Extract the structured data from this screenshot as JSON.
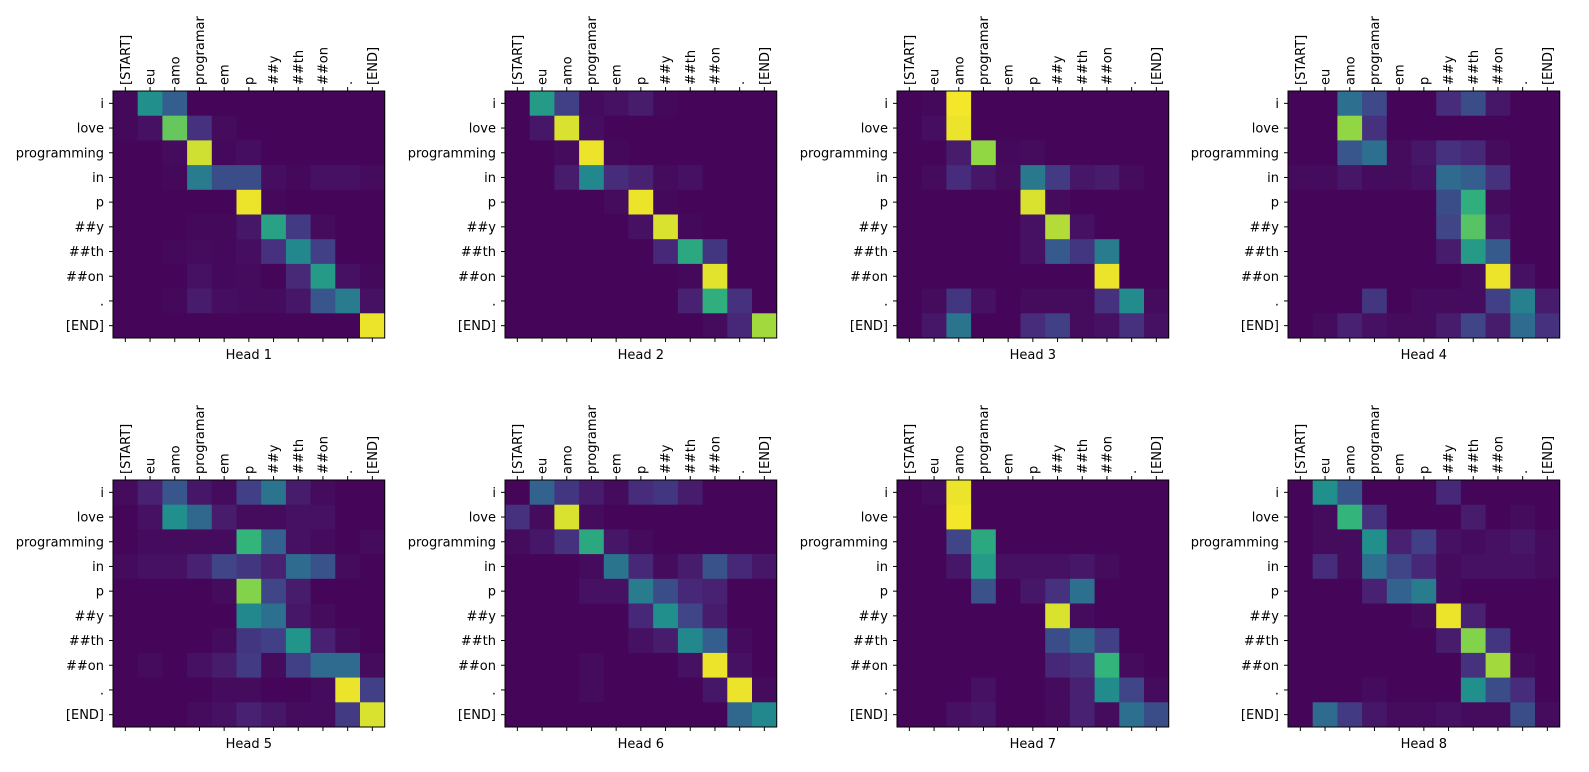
{
  "chart_data": {
    "type": "heatmap",
    "title": "",
    "xlabel": "",
    "ylabel": "",
    "x_tokens": [
      "[START]",
      "eu",
      "amo",
      "programar",
      "em",
      "p",
      "##y",
      "##th",
      "##on",
      ".",
      "[END]"
    ],
    "y_tokens": [
      "i",
      "love",
      "programming",
      "in",
      "p",
      "##y",
      "##th",
      "##on",
      ".",
      "[END]"
    ],
    "value_range": [
      0,
      1
    ],
    "colormap": "viridis",
    "panels": [
      {
        "label": "Head 1",
        "values": [
          [
            0.03,
            0.62,
            0.38,
            0.02,
            0.02,
            0.02,
            0.02,
            0.02,
            0.02,
            0.02,
            0.02
          ],
          [
            0.03,
            0.06,
            0.82,
            0.18,
            0.04,
            0.02,
            0.02,
            0.02,
            0.02,
            0.02,
            0.02
          ],
          [
            0.02,
            0.02,
            0.04,
            0.95,
            0.03,
            0.05,
            0.02,
            0.02,
            0.02,
            0.02,
            0.02
          ],
          [
            0.02,
            0.02,
            0.03,
            0.52,
            0.3,
            0.3,
            0.05,
            0.03,
            0.06,
            0.06,
            0.04
          ],
          [
            0.02,
            0.02,
            0.02,
            0.02,
            0.02,
            0.98,
            0.03,
            0.02,
            0.02,
            0.02,
            0.02
          ],
          [
            0.02,
            0.02,
            0.02,
            0.03,
            0.03,
            0.08,
            0.68,
            0.22,
            0.04,
            0.02,
            0.02
          ],
          [
            0.02,
            0.02,
            0.03,
            0.04,
            0.03,
            0.05,
            0.18,
            0.58,
            0.24,
            0.02,
            0.02
          ],
          [
            0.02,
            0.02,
            0.02,
            0.06,
            0.03,
            0.04,
            0.02,
            0.15,
            0.66,
            0.06,
            0.03
          ],
          [
            0.02,
            0.02,
            0.03,
            0.1,
            0.05,
            0.04,
            0.04,
            0.08,
            0.34,
            0.52,
            0.06
          ],
          [
            0.02,
            0.02,
            0.02,
            0.02,
            0.02,
            0.02,
            0.02,
            0.02,
            0.02,
            0.02,
            0.98
          ]
        ]
      },
      {
        "label": "Head 2",
        "values": [
          [
            0.02,
            0.66,
            0.24,
            0.04,
            0.06,
            0.1,
            0.03,
            0.02,
            0.02,
            0.02,
            0.02
          ],
          [
            0.02,
            0.08,
            0.96,
            0.05,
            0.02,
            0.02,
            0.02,
            0.02,
            0.02,
            0.02,
            0.02
          ],
          [
            0.02,
            0.02,
            0.04,
            0.98,
            0.03,
            0.02,
            0.02,
            0.02,
            0.02,
            0.02,
            0.02
          ],
          [
            0.02,
            0.02,
            0.1,
            0.58,
            0.16,
            0.12,
            0.04,
            0.06,
            0.02,
            0.02,
            0.02
          ],
          [
            0.02,
            0.02,
            0.02,
            0.02,
            0.04,
            0.98,
            0.03,
            0.02,
            0.02,
            0.02,
            0.02
          ],
          [
            0.02,
            0.02,
            0.02,
            0.02,
            0.02,
            0.06,
            0.96,
            0.03,
            0.02,
            0.02,
            0.02
          ],
          [
            0.02,
            0.02,
            0.02,
            0.02,
            0.02,
            0.02,
            0.14,
            0.7,
            0.2,
            0.02,
            0.02
          ],
          [
            0.02,
            0.02,
            0.02,
            0.02,
            0.02,
            0.02,
            0.02,
            0.03,
            0.97,
            0.02,
            0.02
          ],
          [
            0.02,
            0.02,
            0.02,
            0.02,
            0.02,
            0.02,
            0.02,
            0.12,
            0.72,
            0.18,
            0.02
          ],
          [
            0.02,
            0.02,
            0.02,
            0.02,
            0.02,
            0.02,
            0.02,
            0.02,
            0.04,
            0.14,
            0.9
          ]
        ]
      },
      {
        "label": "Head 3",
        "values": [
          [
            0.02,
            0.03,
            0.99,
            0.02,
            0.02,
            0.02,
            0.02,
            0.02,
            0.02,
            0.02,
            0.02
          ],
          [
            0.02,
            0.05,
            0.98,
            0.02,
            0.02,
            0.02,
            0.02,
            0.02,
            0.02,
            0.02,
            0.02
          ],
          [
            0.02,
            0.02,
            0.1,
            0.88,
            0.03,
            0.04,
            0.02,
            0.02,
            0.02,
            0.02,
            0.02
          ],
          [
            0.02,
            0.04,
            0.16,
            0.08,
            0.04,
            0.5,
            0.22,
            0.08,
            0.1,
            0.04,
            0.02
          ],
          [
            0.02,
            0.02,
            0.02,
            0.02,
            0.02,
            0.96,
            0.04,
            0.02,
            0.02,
            0.02,
            0.02
          ],
          [
            0.02,
            0.02,
            0.02,
            0.02,
            0.02,
            0.06,
            0.92,
            0.06,
            0.02,
            0.02,
            0.02
          ],
          [
            0.02,
            0.02,
            0.02,
            0.02,
            0.02,
            0.06,
            0.36,
            0.2,
            0.52,
            0.02,
            0.02
          ],
          [
            0.02,
            0.02,
            0.02,
            0.02,
            0.02,
            0.02,
            0.02,
            0.02,
            0.98,
            0.02,
            0.02
          ],
          [
            0.02,
            0.04,
            0.2,
            0.06,
            0.02,
            0.04,
            0.04,
            0.04,
            0.18,
            0.6,
            0.04
          ],
          [
            0.02,
            0.08,
            0.48,
            0.02,
            0.02,
            0.16,
            0.24,
            0.04,
            0.06,
            0.18,
            0.06
          ]
        ]
      },
      {
        "label": "Head 4",
        "values": [
          [
            0.02,
            0.02,
            0.46,
            0.28,
            0.02,
            0.02,
            0.16,
            0.3,
            0.08,
            0.02,
            0.02
          ],
          [
            0.02,
            0.02,
            0.88,
            0.18,
            0.02,
            0.02,
            0.02,
            0.02,
            0.02,
            0.02,
            0.02
          ],
          [
            0.02,
            0.02,
            0.34,
            0.46,
            0.04,
            0.08,
            0.18,
            0.14,
            0.04,
            0.02,
            0.02
          ],
          [
            0.04,
            0.04,
            0.08,
            0.04,
            0.04,
            0.06,
            0.44,
            0.38,
            0.18,
            0.02,
            0.02
          ],
          [
            0.02,
            0.02,
            0.02,
            0.02,
            0.02,
            0.02,
            0.3,
            0.72,
            0.04,
            0.02,
            0.02
          ],
          [
            0.02,
            0.02,
            0.02,
            0.02,
            0.02,
            0.02,
            0.26,
            0.8,
            0.08,
            0.02,
            0.02
          ],
          [
            0.02,
            0.02,
            0.02,
            0.02,
            0.02,
            0.02,
            0.1,
            0.66,
            0.36,
            0.02,
            0.02
          ],
          [
            0.02,
            0.02,
            0.02,
            0.02,
            0.02,
            0.02,
            0.02,
            0.04,
            0.98,
            0.06,
            0.02
          ],
          [
            0.02,
            0.02,
            0.02,
            0.2,
            0.02,
            0.04,
            0.04,
            0.04,
            0.24,
            0.54,
            0.1
          ],
          [
            0.02,
            0.04,
            0.12,
            0.06,
            0.04,
            0.04,
            0.1,
            0.26,
            0.1,
            0.44,
            0.18
          ]
        ]
      },
      {
        "label": "Head 5",
        "values": [
          [
            0.04,
            0.12,
            0.34,
            0.08,
            0.04,
            0.24,
            0.48,
            0.1,
            0.04,
            0.02,
            0.02
          ],
          [
            0.02,
            0.06,
            0.62,
            0.42,
            0.1,
            0.04,
            0.04,
            0.06,
            0.06,
            0.02,
            0.02
          ],
          [
            0.02,
            0.04,
            0.04,
            0.04,
            0.04,
            0.74,
            0.4,
            0.06,
            0.04,
            0.02,
            0.04
          ],
          [
            0.04,
            0.06,
            0.06,
            0.12,
            0.26,
            0.2,
            0.12,
            0.44,
            0.32,
            0.04,
            0.02
          ],
          [
            0.02,
            0.02,
            0.02,
            0.02,
            0.04,
            0.86,
            0.26,
            0.1,
            0.02,
            0.02,
            0.02
          ],
          [
            0.02,
            0.02,
            0.02,
            0.02,
            0.02,
            0.58,
            0.46,
            0.08,
            0.04,
            0.02,
            0.02
          ],
          [
            0.02,
            0.02,
            0.02,
            0.02,
            0.04,
            0.2,
            0.24,
            0.64,
            0.12,
            0.04,
            0.02
          ],
          [
            0.02,
            0.04,
            0.02,
            0.06,
            0.1,
            0.22,
            0.04,
            0.24,
            0.44,
            0.44,
            0.04
          ],
          [
            0.02,
            0.02,
            0.02,
            0.02,
            0.04,
            0.04,
            0.02,
            0.02,
            0.04,
            0.98,
            0.24
          ],
          [
            0.02,
            0.02,
            0.02,
            0.04,
            0.06,
            0.12,
            0.08,
            0.04,
            0.04,
            0.22,
            0.96
          ]
        ]
      },
      {
        "label": "Head 6",
        "values": [
          [
            0.02,
            0.4,
            0.2,
            0.1,
            0.04,
            0.16,
            0.2,
            0.1,
            0.02,
            0.02,
            0.02
          ],
          [
            0.18,
            0.04,
            0.96,
            0.04,
            0.02,
            0.02,
            0.02,
            0.02,
            0.02,
            0.02,
            0.02
          ],
          [
            0.04,
            0.08,
            0.18,
            0.7,
            0.08,
            0.04,
            0.02,
            0.02,
            0.02,
            0.02,
            0.02
          ],
          [
            0.02,
            0.02,
            0.02,
            0.04,
            0.48,
            0.14,
            0.04,
            0.1,
            0.32,
            0.14,
            0.08
          ],
          [
            0.02,
            0.02,
            0.02,
            0.06,
            0.06,
            0.52,
            0.3,
            0.14,
            0.12,
            0.02,
            0.02
          ],
          [
            0.02,
            0.02,
            0.02,
            0.02,
            0.02,
            0.14,
            0.62,
            0.26,
            0.1,
            0.02,
            0.02
          ],
          [
            0.02,
            0.02,
            0.02,
            0.02,
            0.02,
            0.06,
            0.1,
            0.58,
            0.38,
            0.04,
            0.02
          ],
          [
            0.02,
            0.02,
            0.02,
            0.04,
            0.02,
            0.02,
            0.02,
            0.06,
            0.98,
            0.06,
            0.02
          ],
          [
            0.02,
            0.02,
            0.02,
            0.04,
            0.02,
            0.02,
            0.02,
            0.02,
            0.08,
            0.98,
            0.04
          ],
          [
            0.02,
            0.02,
            0.02,
            0.02,
            0.02,
            0.02,
            0.02,
            0.02,
            0.02,
            0.42,
            0.58
          ]
        ]
      },
      {
        "label": "Head 7",
        "values": [
          [
            0.02,
            0.04,
            0.98,
            0.02,
            0.02,
            0.02,
            0.02,
            0.02,
            0.02,
            0.02,
            0.02
          ],
          [
            0.02,
            0.02,
            0.99,
            0.02,
            0.02,
            0.02,
            0.02,
            0.02,
            0.02,
            0.02,
            0.02
          ],
          [
            0.02,
            0.02,
            0.26,
            0.7,
            0.02,
            0.02,
            0.02,
            0.02,
            0.02,
            0.02,
            0.02
          ],
          [
            0.02,
            0.02,
            0.08,
            0.66,
            0.06,
            0.06,
            0.06,
            0.08,
            0.04,
            0.02,
            0.02
          ],
          [
            0.02,
            0.02,
            0.02,
            0.32,
            0.02,
            0.08,
            0.18,
            0.46,
            0.02,
            0.02,
            0.02
          ],
          [
            0.02,
            0.02,
            0.02,
            0.02,
            0.02,
            0.02,
            0.96,
            0.04,
            0.02,
            0.02,
            0.02
          ],
          [
            0.02,
            0.02,
            0.02,
            0.02,
            0.02,
            0.02,
            0.3,
            0.42,
            0.24,
            0.02,
            0.02
          ],
          [
            0.02,
            0.02,
            0.02,
            0.02,
            0.02,
            0.02,
            0.14,
            0.18,
            0.74,
            0.04,
            0.02
          ],
          [
            0.02,
            0.02,
            0.02,
            0.06,
            0.02,
            0.02,
            0.04,
            0.12,
            0.6,
            0.26,
            0.04
          ],
          [
            0.02,
            0.02,
            0.06,
            0.08,
            0.02,
            0.02,
            0.04,
            0.12,
            0.04,
            0.46,
            0.3
          ]
        ]
      },
      {
        "label": "Head 8",
        "values": [
          [
            0.02,
            0.62,
            0.34,
            0.02,
            0.02,
            0.02,
            0.14,
            0.02,
            0.02,
            0.02,
            0.02
          ],
          [
            0.02,
            0.04,
            0.74,
            0.18,
            0.02,
            0.02,
            0.02,
            0.1,
            0.02,
            0.04,
            0.02
          ],
          [
            0.02,
            0.04,
            0.04,
            0.62,
            0.12,
            0.24,
            0.06,
            0.04,
            0.06,
            0.08,
            0.04
          ],
          [
            0.02,
            0.16,
            0.04,
            0.46,
            0.26,
            0.14,
            0.04,
            0.06,
            0.06,
            0.06,
            0.04
          ],
          [
            0.02,
            0.02,
            0.02,
            0.12,
            0.4,
            0.52,
            0.04,
            0.02,
            0.02,
            0.02,
            0.02
          ],
          [
            0.02,
            0.02,
            0.02,
            0.02,
            0.02,
            0.04,
            0.98,
            0.12,
            0.02,
            0.02,
            0.02
          ],
          [
            0.02,
            0.02,
            0.02,
            0.02,
            0.02,
            0.02,
            0.1,
            0.86,
            0.2,
            0.02,
            0.02
          ],
          [
            0.02,
            0.02,
            0.02,
            0.02,
            0.02,
            0.02,
            0.02,
            0.18,
            0.9,
            0.04,
            0.02
          ],
          [
            0.02,
            0.02,
            0.02,
            0.04,
            0.02,
            0.02,
            0.02,
            0.62,
            0.3,
            0.16,
            0.02
          ],
          [
            0.02,
            0.44,
            0.22,
            0.08,
            0.04,
            0.04,
            0.06,
            0.04,
            0.04,
            0.3,
            0.04
          ]
        ]
      }
    ]
  }
}
